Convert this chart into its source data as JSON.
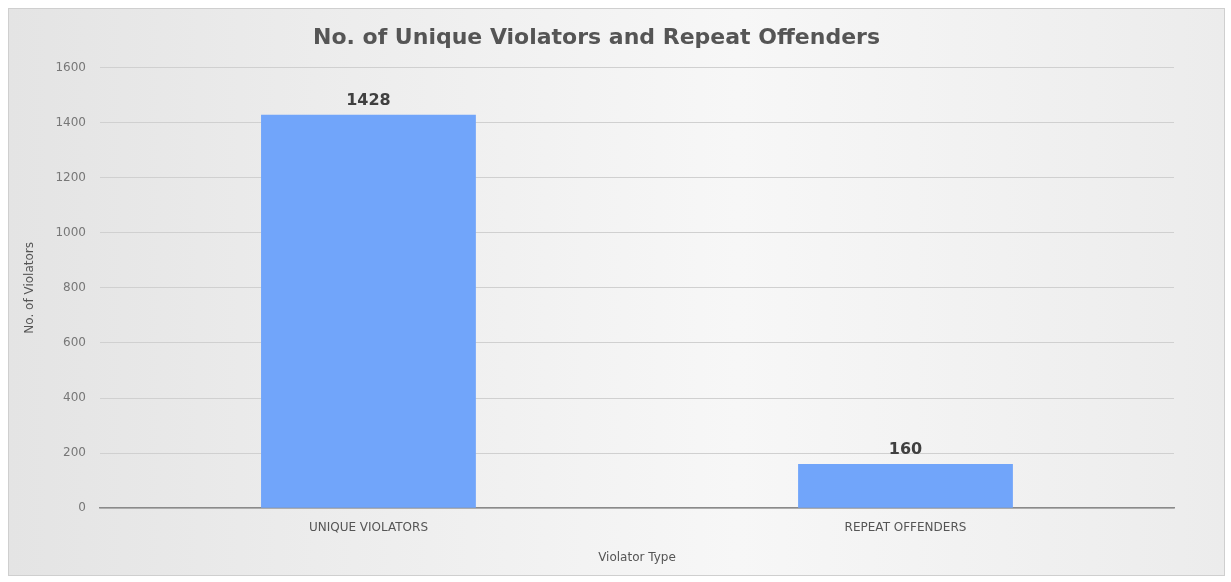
{
  "chart_data": {
    "type": "bar",
    "title": "No. of Unique Violators and Repeat Offenders",
    "xlabel": "Violator Type",
    "ylabel": "No. of Violators",
    "categories": [
      "UNIQUE VIOLATORS",
      "REPEAT OFFENDERS"
    ],
    "values": [
      1428,
      160
    ],
    "color": "#71a5fa",
    "ylim": [
      0,
      1600
    ],
    "yticks": [
      0,
      200,
      400,
      600,
      800,
      1000,
      1200,
      1400,
      1600
    ],
    "grid": "y",
    "data_labels": true,
    "legend": false
  }
}
